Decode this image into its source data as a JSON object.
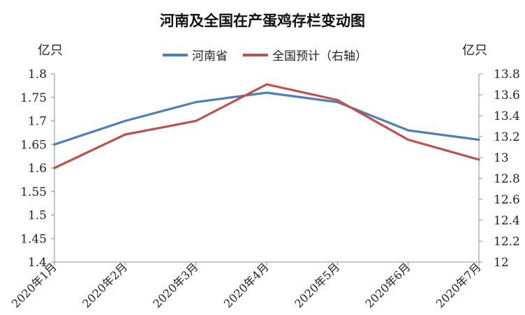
{
  "chart_data": {
    "type": "line",
    "title": "河南及全国在产蛋鸡存栏变动图",
    "left_unit": "亿只",
    "right_unit": "亿只",
    "categories": [
      "2020年1月",
      "2020年2月",
      "2020年3月",
      "2020年4月",
      "2020年5月",
      "2020年6月",
      "2020年7月"
    ],
    "y_left": {
      "min": 1.4,
      "max": 1.8,
      "ticks": [
        "1.4",
        "1.45",
        "1.5",
        "1.55",
        "1.6",
        "1.65",
        "1.7",
        "1.75",
        "1.8"
      ]
    },
    "y_right": {
      "min": 12,
      "max": 13.8,
      "ticks": [
        "12",
        "12.2",
        "12.4",
        "12.6",
        "12.8",
        "13",
        "13.2",
        "13.4",
        "13.6",
        "13.8"
      ]
    },
    "series": [
      {
        "name": "河南省",
        "axis": "left",
        "color": "#4f7fb4",
        "values": [
          1.65,
          1.7,
          1.74,
          1.76,
          1.74,
          1.68,
          1.66
        ]
      },
      {
        "name": "全国预计（右轴）",
        "axis": "right",
        "color": "#c0504d",
        "values": [
          12.9,
          13.22,
          13.35,
          13.7,
          13.55,
          13.17,
          12.98
        ]
      }
    ],
    "grid": false,
    "legend_position": "top"
  }
}
